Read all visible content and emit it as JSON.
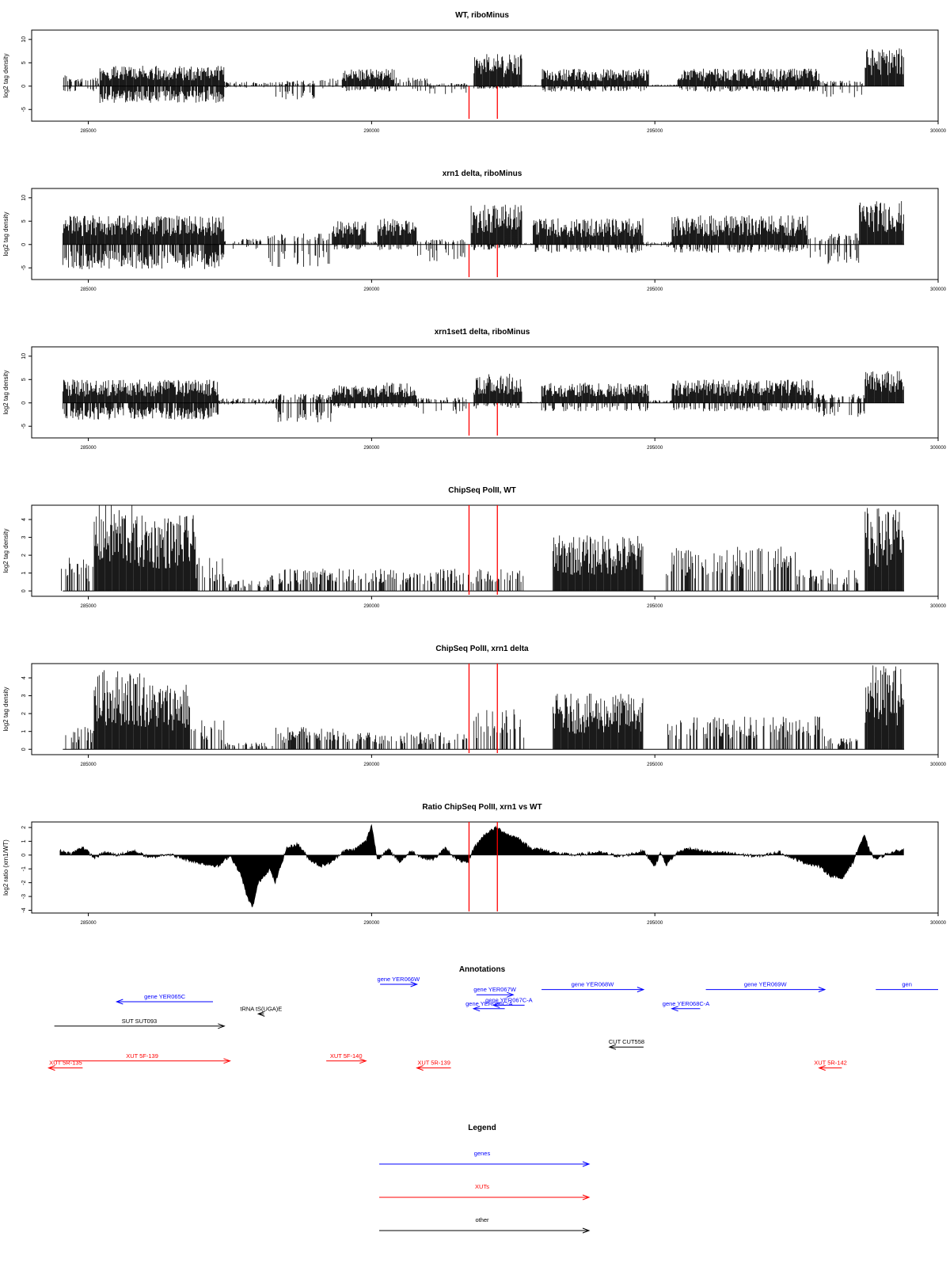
{
  "chart_data": [
    {
      "type": "bar",
      "title": "WT, riboMinus",
      "ylabel": "log2 tag density",
      "xlim": [
        284000,
        300000
      ],
      "ylim": [
        -7.5,
        12
      ],
      "yticks": [
        -5,
        0,
        5,
        10
      ],
      "xticks": [
        285000,
        290000,
        295000,
        300000
      ],
      "xtick_labels": [
        "285000",
        "290000",
        "295000",
        "300000"
      ],
      "red_lines": [
        291720,
        292220
      ],
      "profile": [
        {
          "start": 284550,
          "end": 284700,
          "pos": 2.0,
          "neg": -1.0
        },
        {
          "start": 284700,
          "end": 285200,
          "pos": 1.5,
          "neg": -1.0
        },
        {
          "start": 285200,
          "end": 287400,
          "pos": 3.5,
          "neg": -3.0
        },
        {
          "start": 287400,
          "end": 288300,
          "pos": 0.8,
          "neg": -0.3
        },
        {
          "start": 288300,
          "end": 289000,
          "pos": 1.0,
          "neg": -2.5
        },
        {
          "start": 289000,
          "end": 289500,
          "pos": 1.5,
          "neg": -0.5
        },
        {
          "start": 289500,
          "end": 290400,
          "pos": 3.0,
          "neg": -1.0
        },
        {
          "start": 290400,
          "end": 291000,
          "pos": 1.5,
          "neg": -1.0
        },
        {
          "start": 291000,
          "end": 291700,
          "pos": 0.5,
          "neg": -1.5
        },
        {
          "start": 291800,
          "end": 292650,
          "pos": 5.5,
          "neg": -0.5
        },
        {
          "start": 292650,
          "end": 293000,
          "pos": 0.2,
          "neg": 0
        },
        {
          "start": 293000,
          "end": 294900,
          "pos": 3.0,
          "neg": -1.0
        },
        {
          "start": 294900,
          "end": 295400,
          "pos": 0.3,
          "neg": 0
        },
        {
          "start": 295400,
          "end": 297900,
          "pos": 3.0,
          "neg": -1.0
        },
        {
          "start": 297900,
          "end": 298700,
          "pos": 1.0,
          "neg": -2.0
        },
        {
          "start": 298700,
          "end": 299400,
          "pos": 6.5,
          "neg": 0
        }
      ]
    },
    {
      "type": "bar",
      "title": "xrn1 delta, riboMinus",
      "ylabel": "log2 tag density",
      "xlim": [
        284000,
        300000
      ],
      "ylim": [
        -7.5,
        12
      ],
      "yticks": [
        -5,
        0,
        5,
        10
      ],
      "xticks": [
        285000,
        290000,
        295000,
        300000
      ],
      "xtick_labels": [
        "285000",
        "290000",
        "295000",
        "300000"
      ],
      "red_lines": [
        291720,
        292220
      ],
      "profile": [
        {
          "start": 284550,
          "end": 287400,
          "pos": 5.0,
          "neg": -4.5
        },
        {
          "start": 287400,
          "end": 288100,
          "pos": 1.0,
          "neg": -1.0
        },
        {
          "start": 288100,
          "end": 289300,
          "pos": 2.0,
          "neg": -4.0
        },
        {
          "start": 289300,
          "end": 289900,
          "pos": 4.0,
          "neg": -1.0
        },
        {
          "start": 289900,
          "end": 290100,
          "pos": 0.5,
          "neg": 0
        },
        {
          "start": 290100,
          "end": 290800,
          "pos": 4.5,
          "neg": -1.0
        },
        {
          "start": 290800,
          "end": 291700,
          "pos": 1.0,
          "neg": -3.0
        },
        {
          "start": 291750,
          "end": 292650,
          "pos": 7.0,
          "neg": -1.0
        },
        {
          "start": 292650,
          "end": 292850,
          "pos": 0.3,
          "neg": 0
        },
        {
          "start": 292850,
          "end": 294800,
          "pos": 4.5,
          "neg": -1.5
        },
        {
          "start": 294800,
          "end": 295300,
          "pos": 0.5,
          "neg": -0.5
        },
        {
          "start": 295300,
          "end": 297700,
          "pos": 5.0,
          "neg": -1.5
        },
        {
          "start": 297700,
          "end": 298600,
          "pos": 2.0,
          "neg": -3.5
        },
        {
          "start": 298600,
          "end": 299400,
          "pos": 7.5,
          "neg": 0
        }
      ]
    },
    {
      "type": "bar",
      "title": "xrn1set1 delta, riboMinus",
      "ylabel": "log2 tag density",
      "xlim": [
        284000,
        300000
      ],
      "ylim": [
        -7.5,
        12
      ],
      "yticks": [
        -5,
        0,
        5,
        10
      ],
      "xticks": [
        285000,
        290000,
        295000,
        300000
      ],
      "xtick_labels": [
        "285000",
        "290000",
        "295000",
        "300000"
      ],
      "red_lines": [
        291720,
        292220
      ],
      "profile": [
        {
          "start": 284550,
          "end": 287300,
          "pos": 4.0,
          "neg": -3.0
        },
        {
          "start": 287300,
          "end": 288300,
          "pos": 0.8,
          "neg": -0.3
        },
        {
          "start": 288300,
          "end": 289300,
          "pos": 1.5,
          "neg": -3.5
        },
        {
          "start": 289300,
          "end": 290200,
          "pos": 3.0,
          "neg": -1.0
        },
        {
          "start": 290200,
          "end": 290800,
          "pos": 3.5,
          "neg": -1.0
        },
        {
          "start": 290800,
          "end": 291700,
          "pos": 1.0,
          "neg": -2.0
        },
        {
          "start": 291800,
          "end": 292650,
          "pos": 5.0,
          "neg": -1.0
        },
        {
          "start": 292650,
          "end": 293000,
          "pos": 0.2,
          "neg": 0
        },
        {
          "start": 293000,
          "end": 294900,
          "pos": 3.5,
          "neg": -1.5
        },
        {
          "start": 294900,
          "end": 295300,
          "pos": 0.5,
          "neg": 0
        },
        {
          "start": 295300,
          "end": 297800,
          "pos": 4.0,
          "neg": -1.5
        },
        {
          "start": 297800,
          "end": 298700,
          "pos": 1.5,
          "neg": -2.5
        },
        {
          "start": 298700,
          "end": 299400,
          "pos": 5.5,
          "neg": 0
        }
      ]
    },
    {
      "type": "bar",
      "title": "ChipSeq PolII, WT",
      "ylabel": "log2 tag density",
      "xlim": [
        284000,
        300000
      ],
      "ylim": [
        -0.3,
        4.8
      ],
      "yticks": [
        0,
        1,
        2,
        3,
        4
      ],
      "xticks": [
        285000,
        290000,
        295000,
        300000
      ],
      "xtick_labels": [
        "285000",
        "290000",
        "295000",
        "300000"
      ],
      "red_lines": [
        291720,
        292220
      ],
      "profile": [
        {
          "start": 284500,
          "end": 285100,
          "pos": 1.5,
          "neg": 0
        },
        {
          "start": 285100,
          "end": 285800,
          "pos": 3.9,
          "neg": 0
        },
        {
          "start": 285800,
          "end": 286900,
          "pos": 3.4,
          "neg": 0
        },
        {
          "start": 286900,
          "end": 287400,
          "pos": 1.5,
          "neg": 0
        },
        {
          "start": 287400,
          "end": 288200,
          "pos": 0.5,
          "neg": 0
        },
        {
          "start": 288200,
          "end": 290000,
          "pos": 1.0,
          "neg": 0
        },
        {
          "start": 290000,
          "end": 291700,
          "pos": 1.0,
          "neg": 0
        },
        {
          "start": 291700,
          "end": 292700,
          "pos": 1.0,
          "neg": 0
        },
        {
          "start": 293200,
          "end": 294800,
          "pos": 2.5,
          "neg": 0
        },
        {
          "start": 295200,
          "end": 297500,
          "pos": 2.0,
          "neg": 0
        },
        {
          "start": 297500,
          "end": 298600,
          "pos": 1.0,
          "neg": 0
        },
        {
          "start": 298700,
          "end": 299400,
          "pos": 3.8,
          "neg": 0
        }
      ]
    },
    {
      "type": "bar",
      "title": "ChipSeq PolII, xrn1 delta",
      "ylabel": "log2 tag density",
      "xlim": [
        284000,
        300000
      ],
      "ylim": [
        -0.3,
        4.8
      ],
      "yticks": [
        0,
        1,
        2,
        3,
        4
      ],
      "xticks": [
        285000,
        290000,
        295000,
        300000
      ],
      "xtick_labels": [
        "285000",
        "290000",
        "295000",
        "300000"
      ],
      "red_lines": [
        291720,
        292220
      ],
      "profile": [
        {
          "start": 284600,
          "end": 285100,
          "pos": 1.0,
          "neg": 0
        },
        {
          "start": 285100,
          "end": 286000,
          "pos": 3.6,
          "neg": 0
        },
        {
          "start": 286000,
          "end": 286800,
          "pos": 3.0,
          "neg": 0
        },
        {
          "start": 286800,
          "end": 287400,
          "pos": 1.3,
          "neg": 0
        },
        {
          "start": 287400,
          "end": 288300,
          "pos": 0.3,
          "neg": 0
        },
        {
          "start": 288300,
          "end": 289500,
          "pos": 1.0,
          "neg": 0
        },
        {
          "start": 289500,
          "end": 291700,
          "pos": 0.8,
          "neg": 0
        },
        {
          "start": 291800,
          "end": 292700,
          "pos": 1.8,
          "neg": 0
        },
        {
          "start": 293200,
          "end": 294800,
          "pos": 2.5,
          "neg": 0
        },
        {
          "start": 295200,
          "end": 298000,
          "pos": 1.5,
          "neg": 0
        },
        {
          "start": 298000,
          "end": 298600,
          "pos": 0.5,
          "neg": 0
        },
        {
          "start": 298700,
          "end": 299400,
          "pos": 3.8,
          "neg": 0
        }
      ]
    },
    {
      "type": "area",
      "title": "Ratio ChipSeq PolII, xrn1 vs WT",
      "ylabel": "log2 ratio (xrn1/WT)",
      "xlim": [
        284000,
        300000
      ],
      "ylim": [
        -4.2,
        2.4
      ],
      "yticks": [
        -4,
        -3,
        -2,
        -1,
        0,
        1,
        2
      ],
      "xticks": [
        285000,
        290000,
        295000,
        300000
      ],
      "xtick_labels": [
        "285000",
        "290000",
        "295000",
        "300000"
      ],
      "red_lines": [
        291720,
        292220
      ],
      "x": [
        284500,
        284700,
        284900,
        285100,
        285300,
        285500,
        285800,
        286100,
        286400,
        286700,
        287000,
        287300,
        287500,
        287700,
        287800,
        287900,
        288000,
        288200,
        288300,
        288500,
        288700,
        288900,
        289100,
        289300,
        289500,
        289700,
        289900,
        290000,
        290100,
        290300,
        290500,
        290700,
        290900,
        291100,
        291300,
        291500,
        291700,
        291800,
        292000,
        292200,
        292400,
        292600,
        292800,
        293000,
        293300,
        293600,
        294000,
        294400,
        294800,
        295000,
        295100,
        295200,
        295400,
        295600,
        295800,
        296000,
        296400,
        296800,
        297200,
        297600,
        297900,
        298100,
        298300,
        298500,
        298600,
        298700,
        298800,
        298900,
        299100,
        299300,
        299400
      ],
      "y": [
        0.3,
        0.1,
        0.6,
        -0.2,
        0.2,
        0.0,
        0.3,
        -0.2,
        0.1,
        -0.3,
        -0.6,
        -0.8,
        0.0,
        -1.5,
        -3.0,
        -3.8,
        -2.0,
        -1.0,
        -2.0,
        0.5,
        0.8,
        -0.3,
        -0.8,
        -0.5,
        0.3,
        0.4,
        1.0,
        2.2,
        -0.3,
        0.4,
        -0.5,
        0.3,
        -0.2,
        -0.3,
        0.5,
        -0.3,
        -0.6,
        0.5,
        1.5,
        2.0,
        1.5,
        1.2,
        0.5,
        0.4,
        0.1,
        0.0,
        0.2,
        -0.1,
        0.3,
        -0.8,
        0.2,
        -0.7,
        0.2,
        0.5,
        0.3,
        0.2,
        0.1,
        -0.1,
        0.2,
        -0.5,
        -0.8,
        -1.5,
        -1.7,
        -0.5,
        0.6,
        1.4,
        0.2,
        -0.3,
        0.1,
        0.3,
        0.4
      ]
    }
  ],
  "annotations": {
    "title": "Annotations",
    "items": [
      {
        "label": "gene YER065C",
        "type": "gene",
        "start": 285500,
        "end": 287200,
        "dir": "rev",
        "row": 0
      },
      {
        "label": "gene YER066W",
        "type": "gene",
        "start": 290150,
        "end": 290800,
        "dir": "fwd",
        "row": -1
      },
      {
        "label": "gene YER067W",
        "type": "gene",
        "start": 291850,
        "end": 292500,
        "dir": "fwd",
        "row": -0.4
      },
      {
        "label": "gene YER066C-A",
        "type": "gene",
        "start": 291800,
        "end": 292350,
        "dir": "rev",
        "row": 0.4
      },
      {
        "label": "gene YER067C-A",
        "type": "gene",
        "start": 292150,
        "end": 292700,
        "dir": "rev",
        "row": 0.2
      },
      {
        "label": "gene YER068W",
        "type": "gene",
        "start": 293000,
        "end": 294800,
        "dir": "fwd",
        "row": -0.7
      },
      {
        "label": "gene YER068C-A",
        "type": "gene",
        "start": 295300,
        "end": 295800,
        "dir": "rev",
        "row": 0.4
      },
      {
        "label": "gene YER069W",
        "type": "gene",
        "start": 295900,
        "end": 298000,
        "dir": "fwd",
        "row": -0.7
      },
      {
        "label": "gen",
        "type": "gene",
        "start": 298900,
        "end": 300000,
        "dir": "none",
        "row": -0.7
      },
      {
        "label": "tRNA tS(UGA)E",
        "type": "other",
        "start": 288000,
        "end": 288100,
        "dir": "rev",
        "row": 0.7
      },
      {
        "label": "SUT SUT093",
        "type": "other",
        "start": 284400,
        "end": 287400,
        "dir": "fwd",
        "row": 1.4
      },
      {
        "label": "CUT CUT558",
        "type": "other",
        "start": 294200,
        "end": 294800,
        "dir": "rev",
        "row": 2.6
      },
      {
        "label": "XUT 5F-139",
        "type": "xut",
        "start": 284400,
        "end": 287500,
        "dir": "fwd",
        "row": 3.4
      },
      {
        "label": "XUT 5R-135",
        "type": "xut",
        "start": 284300,
        "end": 284900,
        "dir": "rev",
        "row": 3.8
      },
      {
        "label": "XUT 5F-140",
        "type": "xut",
        "start": 289200,
        "end": 289900,
        "dir": "fwd",
        "row": 3.4
      },
      {
        "label": "XUT 5R-139",
        "type": "xut",
        "start": 290800,
        "end": 291400,
        "dir": "rev",
        "row": 3.8
      },
      {
        "label": "XUT 5R-142",
        "type": "xut",
        "start": 297900,
        "end": 298300,
        "dir": "rev",
        "row": 3.8
      }
    ]
  },
  "legend": {
    "title": "Legend",
    "items": [
      {
        "label": "genes",
        "color": "#0000ff"
      },
      {
        "label": "XUTs",
        "color": "#ff0000"
      },
      {
        "label": "other",
        "color": "#000000"
      }
    ]
  },
  "colors": {
    "gene": "#0000ff",
    "xut": "#ff0000",
    "other": "#000000",
    "marker": "#ff0000",
    "bar": "#000000"
  }
}
